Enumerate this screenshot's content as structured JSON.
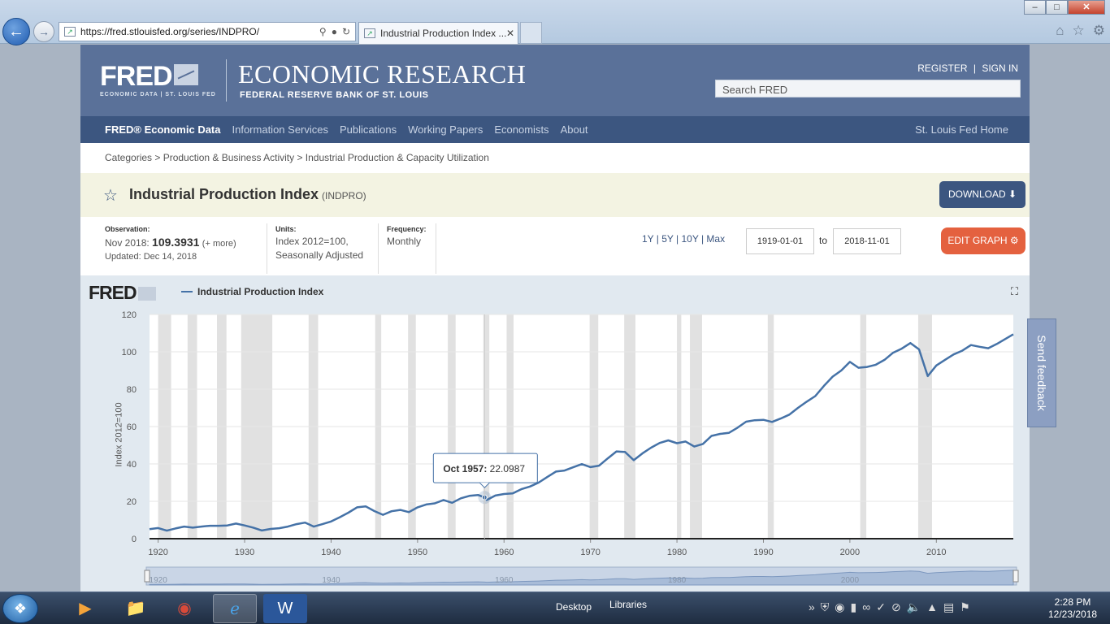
{
  "browser": {
    "url": "https://fred.stlouisfed.org/series/INDPRO/",
    "tab_title": "Industrial Production Index ...",
    "window_buttons": {
      "minimize": "‒",
      "maximize": "□",
      "close": "✕"
    }
  },
  "header": {
    "logo_text": "FRED",
    "logo_sub": "ECONOMIC DATA  |  ST. LOUIS FED",
    "title": "ECONOMIC RESEARCH",
    "subtitle": "FEDERAL RESERVE BANK OF ST. LOUIS",
    "register": "REGISTER",
    "sign_in": "SIGN IN",
    "search_placeholder": "Search FRED"
  },
  "nav": {
    "items": [
      "FRED® Economic Data",
      "Information Services",
      "Publications",
      "Working Papers",
      "Economists",
      "About"
    ],
    "home": "St. Louis Fed Home"
  },
  "breadcrumb": "Categories > Production & Business Activity > Industrial Production & Capacity Utilization",
  "series": {
    "title": "Industrial Production Index",
    "id": "(INDPRO)",
    "download_label": "DOWNLOAD",
    "edit_label": "EDIT GRAPH"
  },
  "meta": {
    "observation_label": "Observation:",
    "observation_date": "Nov 2018:",
    "observation_value": "109.3931",
    "more": "(+ more)",
    "updated": "Updated: Dec 14, 2018",
    "units_label": "Units:",
    "units_line1": "Index 2012=100,",
    "units_line2": "Seasonally Adjusted",
    "frequency_label": "Frequency:",
    "frequency": "Monthly",
    "ranges": "1Y | 5Y | 10Y | Max",
    "start_date": "1919-01-01",
    "to": "to",
    "end_date": "2018-11-01"
  },
  "graph": {
    "logo": "FRED",
    "legend": "Industrial Production Index",
    "tooltip_date": "Oct 1957:",
    "tooltip_value": "22.0987",
    "feedback": "Send feedback",
    "navigator_labels": [
      "1920",
      "1940",
      "1960",
      "1980",
      "2000"
    ]
  },
  "chart_data": {
    "type": "line",
    "title": "",
    "xlabel": "",
    "ylabel": "Index 2012=100",
    "xlim": [
      1919,
      2018.9
    ],
    "ylim": [
      0,
      120
    ],
    "x_ticks": [
      1920,
      1930,
      1940,
      1950,
      1960,
      1970,
      1980,
      1990,
      2000,
      2010
    ],
    "y_ticks": [
      0,
      20,
      40,
      60,
      80,
      100,
      120
    ],
    "recessions": [
      [
        1920.0,
        1921.5
      ],
      [
        1923.4,
        1924.5
      ],
      [
        1926.8,
        1927.9
      ],
      [
        1929.6,
        1933.2
      ],
      [
        1937.4,
        1938.5
      ],
      [
        1945.1,
        1945.8
      ],
      [
        1948.9,
        1949.8
      ],
      [
        1953.5,
        1954.4
      ],
      [
        1957.6,
        1958.3
      ],
      [
        1960.3,
        1961.1
      ],
      [
        1969.9,
        1970.9
      ],
      [
        1973.9,
        1975.2
      ],
      [
        1980.0,
        1980.5
      ],
      [
        1981.5,
        1982.9
      ],
      [
        1990.5,
        1991.2
      ],
      [
        2001.2,
        2001.9
      ],
      [
        2007.9,
        2009.5
      ]
    ],
    "series": [
      {
        "name": "Industrial Production Index",
        "x": [
          1919,
          1920,
          1921,
          1922,
          1923,
          1924,
          1925,
          1926,
          1927,
          1928,
          1929,
          1930,
          1931,
          1932,
          1933,
          1934,
          1935,
          1936,
          1937,
          1938,
          1939,
          1940,
          1941,
          1942,
          1943,
          1944,
          1945,
          1946,
          1947,
          1948,
          1949,
          1950,
          1951,
          1952,
          1953,
          1954,
          1955,
          1956,
          1957,
          1957.75,
          1958,
          1959,
          1960,
          1961,
          1962,
          1963,
          1964,
          1965,
          1966,
          1967,
          1968,
          1969,
          1970,
          1971,
          1972,
          1973,
          1974,
          1975,
          1976,
          1977,
          1978,
          1979,
          1980,
          1981,
          1982,
          1983,
          1984,
          1985,
          1986,
          1987,
          1988,
          1989,
          1990,
          1991,
          1992,
          1993,
          1994,
          1995,
          1996,
          1997,
          1998,
          1999,
          2000,
          2001,
          2002,
          2003,
          2004,
          2005,
          2006,
          2007,
          2008,
          2009,
          2010,
          2011,
          2012,
          2013,
          2014,
          2015,
          2016,
          2017,
          2018.9
        ],
        "values": [
          5.1,
          5.7,
          4.3,
          5.5,
          6.5,
          5.9,
          6.5,
          6.9,
          6.9,
          7.1,
          8.1,
          7.1,
          5.9,
          4.4,
          5.2,
          5.6,
          6.5,
          7.8,
          8.6,
          6.5,
          7.8,
          9.2,
          11.5,
          13.9,
          16.8,
          17.3,
          14.8,
          12.8,
          14.7,
          15.4,
          14.2,
          16.8,
          18.3,
          18.9,
          20.7,
          19.2,
          21.6,
          22.9,
          23.4,
          22.1,
          20.7,
          23.1,
          23.9,
          24.2,
          26.5,
          27.9,
          30.0,
          33.0,
          35.9,
          36.5,
          38.2,
          39.9,
          38.3,
          39.1,
          43.0,
          46.7,
          46.4,
          42.0,
          45.6,
          48.7,
          51.2,
          52.6,
          51.1,
          52.0,
          49.3,
          50.7,
          55.0,
          56.1,
          56.6,
          59.4,
          62.6,
          63.4,
          63.6,
          62.5,
          64.3,
          66.4,
          70.0,
          73.3,
          76.3,
          81.8,
          86.7,
          90.0,
          94.6,
          91.5,
          91.9,
          93.1,
          95.7,
          99.5,
          101.7,
          104.7,
          101.3,
          87.0,
          92.7,
          95.7,
          98.6,
          100.6,
          103.6,
          102.7,
          101.9,
          104.2,
          109.4
        ]
      }
    ]
  },
  "taskbar": {
    "desktop": "Desktop",
    "libraries": "Libraries",
    "time": "2:28 PM",
    "date": "12/23/2018"
  }
}
